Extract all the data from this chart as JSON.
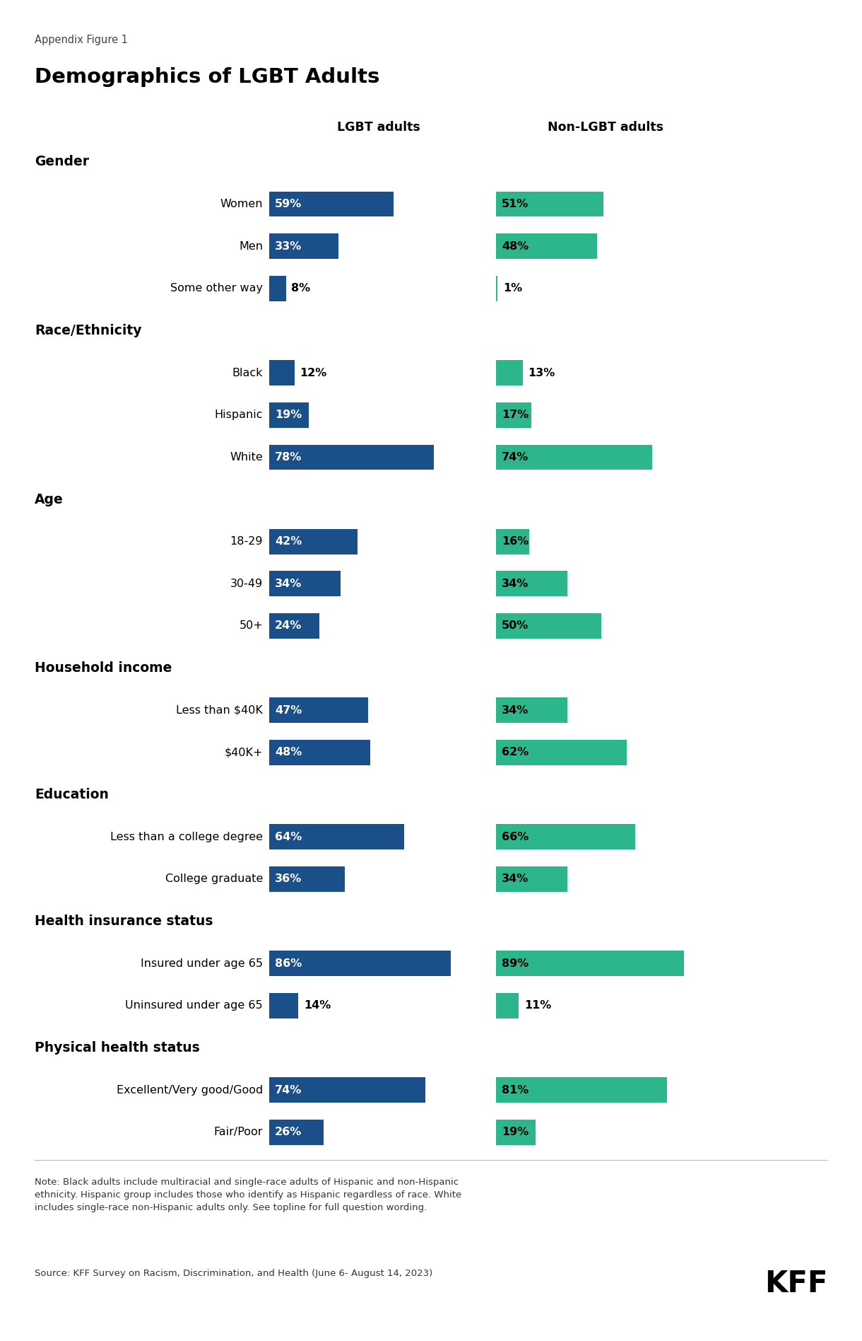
{
  "appendix_label": "Appendix Figure 1",
  "title": "Demographics of LGBT Adults",
  "col1_header": "LGBT adults",
  "col2_header": "Non-LGBT adults",
  "lgbt_color": "#1B4F8A",
  "nonlgbt_color": "#2DB68C",
  "background_color": "#FFFFFF",
  "sections": [
    {
      "header": "Gender",
      "rows": [
        {
          "label": "Women",
          "lgbt": 59,
          "nonlgbt": 51
        },
        {
          "label": "Men",
          "lgbt": 33,
          "nonlgbt": 48
        },
        {
          "label": "Some other way",
          "lgbt": 8,
          "nonlgbt": 1
        }
      ]
    },
    {
      "header": "Race/Ethnicity",
      "rows": [
        {
          "label": "Black",
          "lgbt": 12,
          "nonlgbt": 13
        },
        {
          "label": "Hispanic",
          "lgbt": 19,
          "nonlgbt": 17
        },
        {
          "label": "White",
          "lgbt": 78,
          "nonlgbt": 74
        }
      ]
    },
    {
      "header": "Age",
      "rows": [
        {
          "label": "18-29",
          "lgbt": 42,
          "nonlgbt": 16
        },
        {
          "label": "30-49",
          "lgbt": 34,
          "nonlgbt": 34
        },
        {
          "label": "50+",
          "lgbt": 24,
          "nonlgbt": 50
        }
      ]
    },
    {
      "header": "Household income",
      "rows": [
        {
          "label": "Less than $40K",
          "lgbt": 47,
          "nonlgbt": 34
        },
        {
          "label": "$40K+",
          "lgbt": 48,
          "nonlgbt": 62
        }
      ]
    },
    {
      "header": "Education",
      "rows": [
        {
          "label": "Less than a college degree",
          "lgbt": 64,
          "nonlgbt": 66
        },
        {
          "label": "College graduate",
          "lgbt": 36,
          "nonlgbt": 34
        }
      ]
    },
    {
      "header": "Health insurance status",
      "rows": [
        {
          "label": "Insured under age 65",
          "lgbt": 86,
          "nonlgbt": 89
        },
        {
          "label": "Uninsured under age 65",
          "lgbt": 14,
          "nonlgbt": 11
        }
      ]
    },
    {
      "header": "Physical health status",
      "rows": [
        {
          "label": "Excellent/Very good/Good",
          "lgbt": 74,
          "nonlgbt": 81
        },
        {
          "label": "Fair/Poor",
          "lgbt": 26,
          "nonlgbt": 19
        }
      ]
    }
  ],
  "note_text": "Note: Black adults include multiracial and single-race adults of Hispanic and non-Hispanic\nethnicity. Hispanic group includes those who identify as Hispanic regardless of race. White\nincludes single-race non-Hispanic adults only. See topline for full question wording.",
  "source_text": "Source: KFF Survey on Racism, Discrimination, and Health (June 6- August 14, 2023)",
  "kff_label": "KFF"
}
